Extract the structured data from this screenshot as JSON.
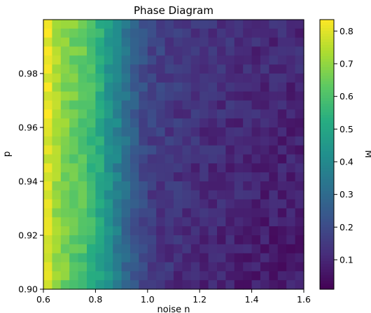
{
  "chart_data": {
    "type": "heatmap",
    "title": "Phase Diagram",
    "xlabel": "noise n",
    "ylabel": "p",
    "xlim": [
      0.6,
      1.6
    ],
    "ylim": [
      0.9,
      1.0
    ],
    "x_ticks": [
      "0.6",
      "0.8",
      "1.0",
      "1.2",
      "1.4",
      "1.6"
    ],
    "y_ticks": [
      "0.90",
      "0.92",
      "0.94",
      "0.96",
      "0.98"
    ],
    "colorbar": {
      "label": "M",
      "range": [
        0.01,
        0.835
      ],
      "ticks": [
        "0.1",
        "0.2",
        "0.3",
        "0.4",
        "0.5",
        "0.6",
        "0.7",
        "0.8"
      ],
      "colormap": "viridis"
    },
    "grid": false,
    "columns": 30,
    "rows": 30,
    "column_profile": {
      "x": [
        0.6,
        0.65,
        0.7,
        0.75,
        0.8,
        0.85,
        0.9,
        0.95,
        1.0,
        1.1,
        1.2,
        1.3,
        1.4,
        1.5,
        1.6
      ],
      "M": [
        0.82,
        0.72,
        0.66,
        0.62,
        0.55,
        0.44,
        0.34,
        0.25,
        0.17,
        0.14,
        0.12,
        0.11,
        0.1,
        0.09,
        0.09
      ]
    },
    "noise_amplitude": 0.045
  }
}
